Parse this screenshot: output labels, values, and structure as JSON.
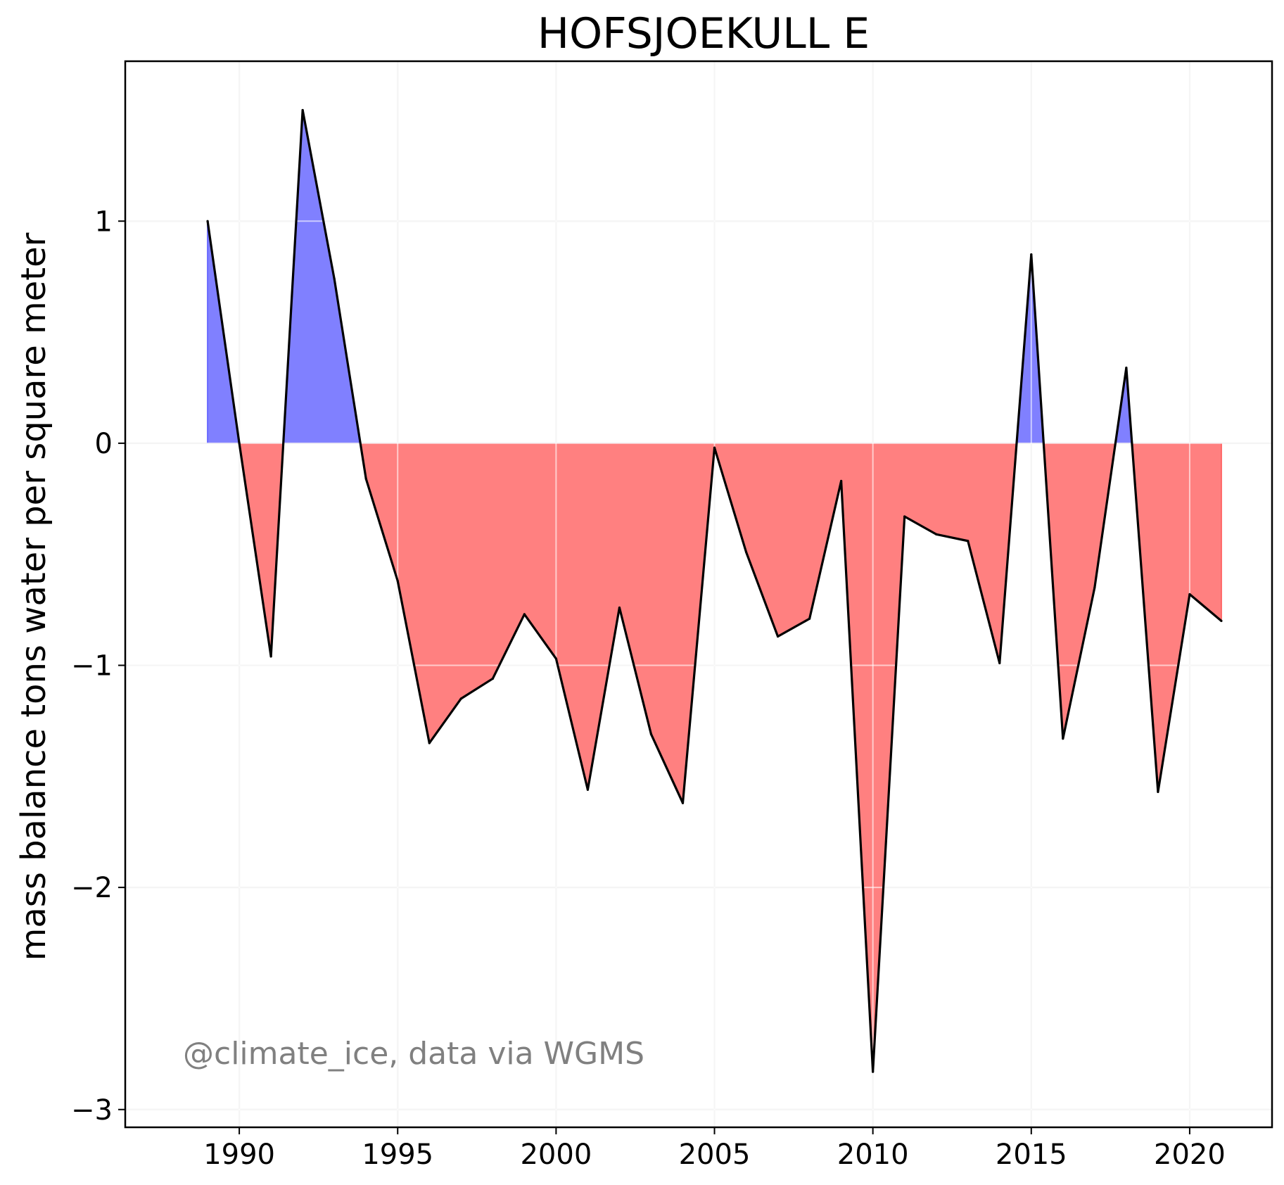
{
  "chart_data": {
    "type": "area",
    "title": "HOFSJOEKULL E",
    "xlabel": "",
    "ylabel": "mass balance tons water per square meter",
    "annotation": "@climate_ice, data via WGMS",
    "x": [
      1989,
      1990,
      1991,
      1992,
      1993,
      1994,
      1995,
      1996,
      1997,
      1998,
      1999,
      2000,
      2001,
      2002,
      2003,
      2004,
      2005,
      2006,
      2007,
      2008,
      2009,
      2010,
      2011,
      2012,
      2013,
      2014,
      2015,
      2016,
      2017,
      2018,
      2019,
      2020,
      2021
    ],
    "series": [
      {
        "values": [
          1.0,
          0.0,
          -0.96,
          1.5,
          0.74,
          -0.16,
          -0.62,
          -1.35,
          -1.15,
          -1.06,
          -0.77,
          -0.97,
          -1.56,
          -0.74,
          -1.31,
          -1.62,
          -0.02,
          -0.49,
          -0.87,
          -0.79,
          -0.17,
          -2.83,
          -0.33,
          -0.41,
          -0.44,
          -0.99,
          0.85,
          -1.33,
          -0.65,
          0.34,
          -1.57,
          -0.68,
          -0.8
        ]
      }
    ],
    "xlim": [
      1986.4,
      2022.6
    ],
    "ylim": [
      -3.08,
      1.72
    ],
    "xticks": [
      1990,
      1995,
      2000,
      2005,
      2010,
      2015,
      2020
    ],
    "xtick_labels": [
      "1990",
      "1995",
      "2000",
      "2005",
      "2010",
      "2015",
      "2020"
    ],
    "yticks": [
      -3,
      -2,
      -1,
      0,
      1
    ],
    "ytick_labels": [
      "−3",
      "−2",
      "−1",
      "0",
      "1"
    ],
    "grid": true,
    "colors": {
      "positive": "#8080ff",
      "negative": "#ff8080",
      "line": "#000000"
    }
  }
}
